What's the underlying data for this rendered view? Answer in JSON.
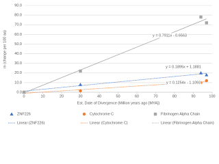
{
  "chart_data": {
    "type": "scatter",
    "xlabel": "Est. Date of Divergence (Million years ago [MYA])",
    "ylabel": "m (change per 100 aa)",
    "xlim": [
      0,
      100
    ],
    "xticks": [
      0,
      10,
      20,
      30,
      40,
      50,
      60,
      70,
      80,
      90,
      100
    ],
    "ylim": [
      0,
      90
    ],
    "yticks": [
      {
        "value": 0,
        "label": "0.0"
      },
      {
        "value": 10,
        "label": "10.0"
      },
      {
        "value": 20,
        "label": "20.0"
      },
      {
        "value": 30,
        "label": "30.0"
      },
      {
        "value": 40,
        "label": "40.0"
      },
      {
        "value": 50,
        "label": "50.0"
      },
      {
        "value": 60,
        "label": "60.0"
      },
      {
        "value": 70,
        "label": "70.0"
      },
      {
        "value": 80,
        "label": "80.0"
      },
      {
        "value": 90,
        "label": "90.0"
      }
    ],
    "grid": true,
    "legend": "bottom",
    "series": [
      {
        "name": "ZNF226",
        "color": "#4472c4",
        "marker": "triangle",
        "x": [
          0,
          30,
          94,
          97
        ],
        "values": [
          0,
          8,
          20,
          18
        ],
        "trendline": {
          "name": "Linear (ZNF226)",
          "slope": 0.1895,
          "intercept": 1.1881,
          "label": "y = 0.1895x + 1.1881"
        }
      },
      {
        "name": "Cytochrome C",
        "color": "#ed7d31",
        "marker": "circle",
        "x": [
          0,
          30,
          94,
          97
        ],
        "values": [
          0,
          1.5,
          10,
          12
        ],
        "trendline": {
          "name": "Linear (Cytochrome C)",
          "slope": 0.1254,
          "intercept": -1.1093,
          "label": "y = 0.1254x - 1.1093"
        }
      },
      {
        "name": "Fibrinogen Alpha Chain",
        "color": "#a5a5a5",
        "marker": "square",
        "x": [
          0,
          30,
          94,
          97
        ],
        "values": [
          0,
          22,
          78,
          72
        ],
        "trendline": {
          "name": "Linear (Fibrinogen Alpha Chain)",
          "slope": 0.7911,
          "intercept": -0.6563,
          "label": "y = 0.7911x - 0.6563"
        }
      }
    ]
  }
}
